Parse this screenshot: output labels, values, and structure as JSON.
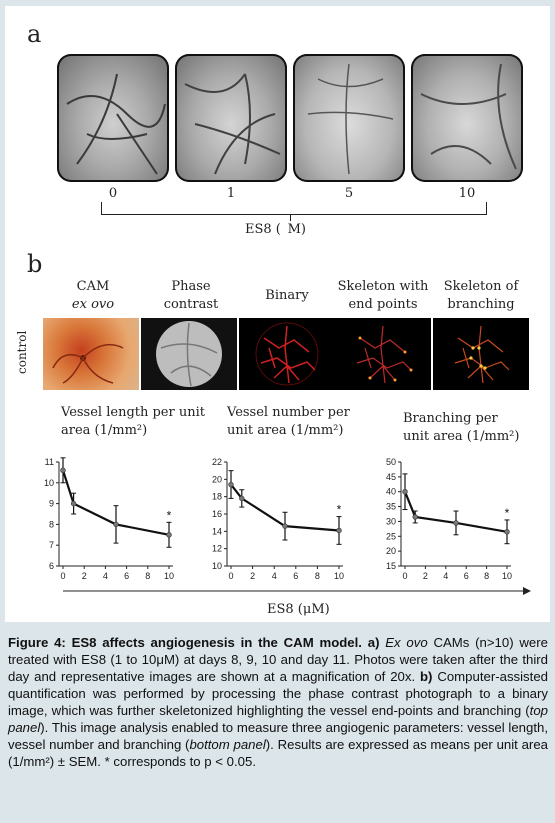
{
  "panel_a": {
    "label": "a",
    "doses": [
      "0",
      "1",
      "5",
      "10"
    ],
    "axis_label": "ES8 (  M)"
  },
  "panel_b": {
    "label": "b",
    "headers": [
      {
        "line1": "CAM",
        "line2": "ex ovo"
      },
      {
        "line1": "Phase",
        "line2": "contrast"
      },
      {
        "line1": "Binary",
        "line2": ""
      },
      {
        "line1": "Skeleton with",
        "line2": "end points"
      },
      {
        "line1": "Skeleton of",
        "line2": "branching"
      }
    ],
    "row_label": "control",
    "x_axis_label": "ES8 (μM)"
  },
  "chart_data": [
    {
      "type": "line",
      "title": "Vessel length per unit area (1/mm²)",
      "x": [
        0,
        1,
        5,
        10
      ],
      "y": [
        10.6,
        9.0,
        8.0,
        7.5
      ],
      "error": [
        0.6,
        0.5,
        0.9,
        0.6
      ],
      "significant": [
        false,
        false,
        false,
        true
      ],
      "ylim": [
        6,
        11
      ],
      "yticks": [
        6,
        7,
        8,
        9,
        10,
        11
      ],
      "xticks": [
        0,
        2,
        4,
        6,
        8,
        10
      ],
      "xlim": [
        0,
        10
      ]
    },
    {
      "type": "line",
      "title": "Vessel number per unit area (1/mm²)",
      "x": [
        0,
        1,
        5,
        10
      ],
      "y": [
        19.4,
        17.8,
        14.6,
        14.1
      ],
      "error": [
        1.6,
        1.0,
        1.6,
        1.6
      ],
      "significant": [
        false,
        false,
        false,
        true
      ],
      "ylim": [
        10,
        22
      ],
      "yticks": [
        10,
        12,
        14,
        16,
        18,
        20,
        22
      ],
      "xticks": [
        0,
        2,
        4,
        6,
        8,
        10
      ],
      "xlim": [
        0,
        10
      ]
    },
    {
      "type": "line",
      "title": "Branching per unit area (1/mm²)",
      "x": [
        0,
        1,
        5,
        10
      ],
      "y": [
        40,
        31.5,
        29.5,
        26.5
      ],
      "error": [
        6,
        2,
        4,
        4
      ],
      "significant": [
        false,
        false,
        false,
        true
      ],
      "ylim": [
        15,
        50
      ],
      "yticks": [
        15,
        20,
        25,
        30,
        35,
        40,
        45,
        50
      ],
      "xticks": [
        0,
        2,
        4,
        6,
        8,
        10
      ],
      "xlim": [
        0,
        10
      ]
    }
  ],
  "caption": {
    "title": "Figure 4: ES8 affects angiogenesis in the CAM model. a)",
    "t1_italic": "Ex ovo",
    "t2": " CAMs (n>10) were treated with ES8 (1 to 10μM) at days 8, 9, 10 and day 11. Photos were taken after the third day and representative images are shown at a magnification of 20x. ",
    "b_label": "b)",
    "t3": " Computer-assisted quantification was performed by processing the phase contrast photograph to a binary image, which was further skeletonized highlighting the vessel end-points and branching (",
    "t4_italic": "top panel",
    "t5": "). This image analysis enabled to measure three angiogenic parameters: vessel length, vessel number and branching (",
    "t6_italic": "bottom panel",
    "t7": "). Results are expressed as means per unit area (1/mm²) ± SEM. * corresponds to p < 0.05."
  }
}
